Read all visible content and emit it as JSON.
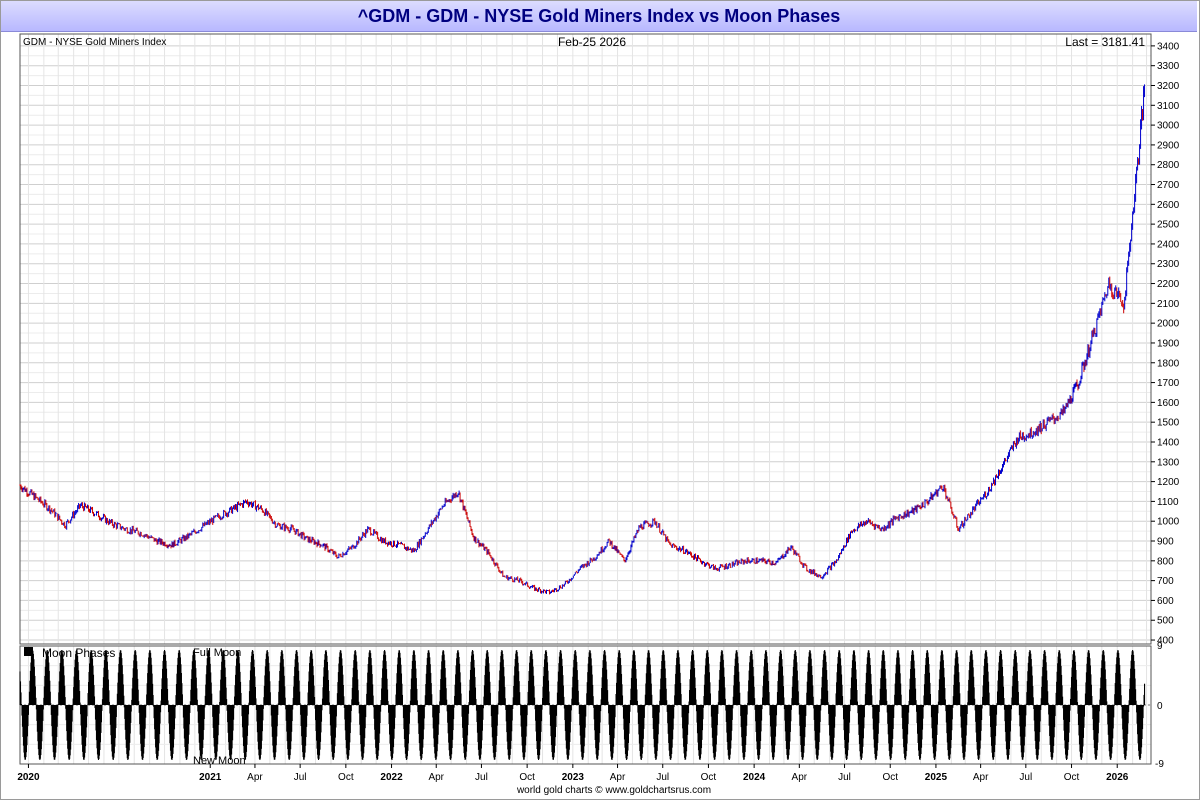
{
  "title": "^GDM - GDM - NYSE Gold Miners Index vs Moon Phases",
  "top_left_label": "GDM - NYSE Gold Miners Index",
  "date_label": "Feb-25  2026",
  "last_label": "Last = 3181.41",
  "footer": "world gold charts © www.goldchartsrus.com",
  "moon": {
    "legend": "Moon Phases",
    "full_label": "Full Moon",
    "new_label": "New Moon",
    "yticks": [
      "9",
      "0",
      "-9"
    ]
  },
  "colors": {
    "up": "#0000cc",
    "down": "#cc0000",
    "grid": "#d8d8d8",
    "title_text": "#000080"
  },
  "chart_data": [
    {
      "type": "line",
      "x_axis_type": "date",
      "xlabel": "",
      "ylabel": "",
      "ylim": [
        380,
        3460
      ],
      "xlim": [
        "2019-12-15",
        "2026-03-10"
      ],
      "grid": true,
      "y_tick_labels": [
        "400",
        "500",
        "600",
        "700",
        "800",
        "900",
        "1000",
        "1100",
        "1200",
        "1300",
        "1400",
        "1500",
        "1600",
        "1700",
        "1800",
        "1900",
        "2000",
        "2100",
        "2200",
        "2300",
        "2400",
        "2500",
        "2600",
        "2700",
        "2800",
        "2900",
        "3000",
        "3100",
        "3200",
        "3300",
        "3400"
      ],
      "x_tick_labels": [
        "2020",
        "2021",
        "Apr",
        "Jul",
        "Oct",
        "2022",
        "Apr",
        "Jul",
        "Oct",
        "2023",
        "Apr",
        "Jul",
        "Oct",
        "2024",
        "Apr",
        "Jul",
        "Oct",
        "2025",
        "Apr",
        "Jul",
        "Oct",
        "2026"
      ],
      "x_tick_dates": [
        "2020-01-01",
        "2021-01-01",
        "2021-04-01",
        "2021-07-01",
        "2021-10-01",
        "2022-01-01",
        "2022-04-01",
        "2022-07-01",
        "2022-10-01",
        "2023-01-01",
        "2023-04-01",
        "2023-07-01",
        "2023-10-01",
        "2024-01-01",
        "2024-04-01",
        "2024-07-01",
        "2024-10-01",
        "2025-01-01",
        "2025-04-01",
        "2025-07-01",
        "2025-10-01",
        "2026-01-01"
      ],
      "bold_x_ticks": [
        "2020",
        "2021",
        "2022",
        "2023",
        "2024",
        "2025",
        "2026"
      ],
      "series": [
        {
          "x": [
            "2019-12-15",
            "2020-01-15",
            "2020-02-15",
            "2020-03-15",
            "2020-04-15",
            "2020-05-15",
            "2020-06-15",
            "2020-07-15",
            "2020-08-15",
            "2020-09-15",
            "2020-10-15",
            "2020-11-15",
            "2020-12-15",
            "2021-01-15",
            "2021-02-15",
            "2021-03-15",
            "2021-04-15",
            "2021-05-15",
            "2021-06-15",
            "2021-07-15",
            "2021-08-15",
            "2021-09-15",
            "2021-10-15",
            "2021-11-15",
            "2021-12-15",
            "2022-01-15",
            "2022-02-15",
            "2022-03-15",
            "2022-04-15",
            "2022-05-15",
            "2022-06-15",
            "2022-07-15",
            "2022-08-15",
            "2022-09-15",
            "2022-10-15",
            "2022-11-15",
            "2022-12-15",
            "2023-01-15",
            "2023-02-15",
            "2023-03-15",
            "2023-04-15",
            "2023-05-15",
            "2023-06-15",
            "2023-07-15",
            "2023-08-15",
            "2023-09-15",
            "2023-10-15",
            "2023-11-15",
            "2023-12-15",
            "2024-01-15",
            "2024-02-15",
            "2024-03-15",
            "2024-04-15",
            "2024-05-15",
            "2024-06-15",
            "2024-07-15",
            "2024-08-15",
            "2024-09-15",
            "2024-10-15",
            "2024-11-15",
            "2024-12-15",
            "2025-01-15",
            "2025-02-15",
            "2025-03-15",
            "2025-04-15",
            "2025-05-15",
            "2025-06-15",
            "2025-07-15",
            "2025-08-15",
            "2025-09-15",
            "2025-10-15",
            "2025-11-15",
            "2025-12-15",
            "2026-01-15",
            "2026-02-25"
          ],
          "values": [
            1180,
            1120,
            1060,
            980,
            1080,
            1040,
            990,
            960,
            940,
            900,
            880,
            920,
            970,
            1020,
            1060,
            1100,
            1060,
            980,
            960,
            910,
            880,
            820,
            870,
            960,
            900,
            880,
            850,
            960,
            1080,
            1150,
            920,
            840,
            720,
            700,
            660,
            640,
            680,
            760,
            820,
            900,
            800,
            970,
            1000,
            880,
            850,
            800,
            760,
            780,
            800,
            800,
            790,
            870,
            760,
            720,
            800,
            950,
            1000,
            960,
            1020,
            1050,
            1100,
            1180,
            960,
            1050,
            1150,
            1280,
            1420,
            1450,
            1500,
            1550,
            1700,
            1950,
            2200,
            2100,
            3181
          ]
        }
      ]
    },
    {
      "type": "area",
      "series": [
        {
          "name": "Moon Phases"
        }
      ],
      "ylim": [
        -9,
        9
      ],
      "cycle_days": 29.53,
      "reference_new_moon": "2020-01-24",
      "x_range": [
        "2019-12-15",
        "2026-02-25"
      ]
    }
  ]
}
